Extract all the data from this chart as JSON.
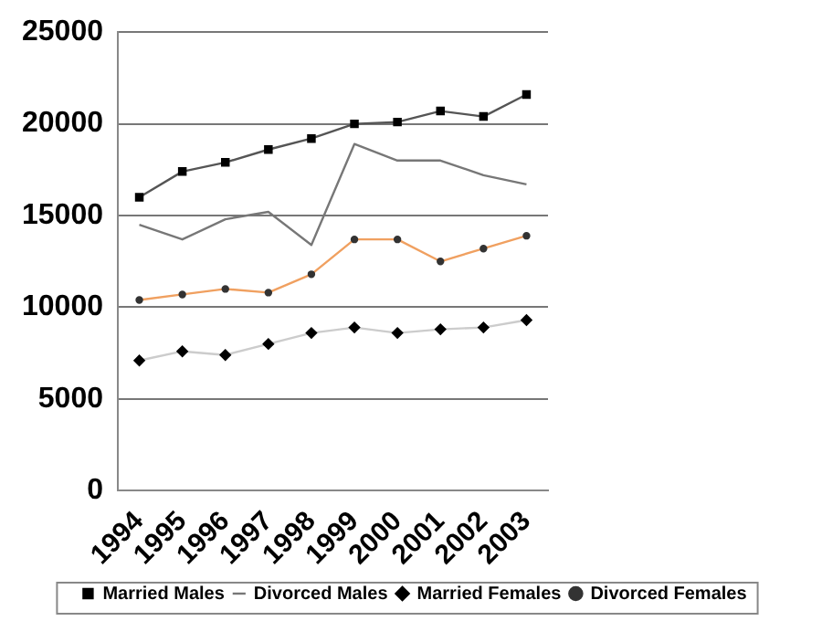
{
  "chart_data": {
    "type": "line",
    "categories": [
      "1994",
      "1995",
      "1996",
      "1997",
      "1998",
      "1999",
      "2000",
      "2001",
      "2002",
      "2003"
    ],
    "series": [
      {
        "name": "Married Males",
        "color": "#555555",
        "marker": "square",
        "values": [
          16000,
          17400,
          17900,
          18600,
          19200,
          20000,
          20100,
          20700,
          20400,
          21600
        ]
      },
      {
        "name": "Divorced Males",
        "color": "#777777",
        "marker": "none",
        "values": [
          14500,
          13700,
          14800,
          15200,
          13400,
          18900,
          18000,
          18000,
          17200,
          16700
        ]
      },
      {
        "name": "Married Females",
        "color": "#cccccc",
        "marker": "diamond",
        "values": [
          7100,
          7600,
          7400,
          8000,
          8600,
          8900,
          8600,
          8800,
          8900,
          9300
        ]
      },
      {
        "name": "Divorced Females",
        "color": "#f0a060",
        "marker": "circle",
        "values": [
          10400,
          10700,
          11000,
          10800,
          11800,
          13700,
          13700,
          12500,
          13200,
          13900
        ]
      }
    ],
    "ylim": [
      0,
      25000
    ],
    "yticks": [
      0,
      5000,
      10000,
      15000,
      20000,
      25000
    ],
    "grid": "y",
    "legend": "bottom"
  }
}
